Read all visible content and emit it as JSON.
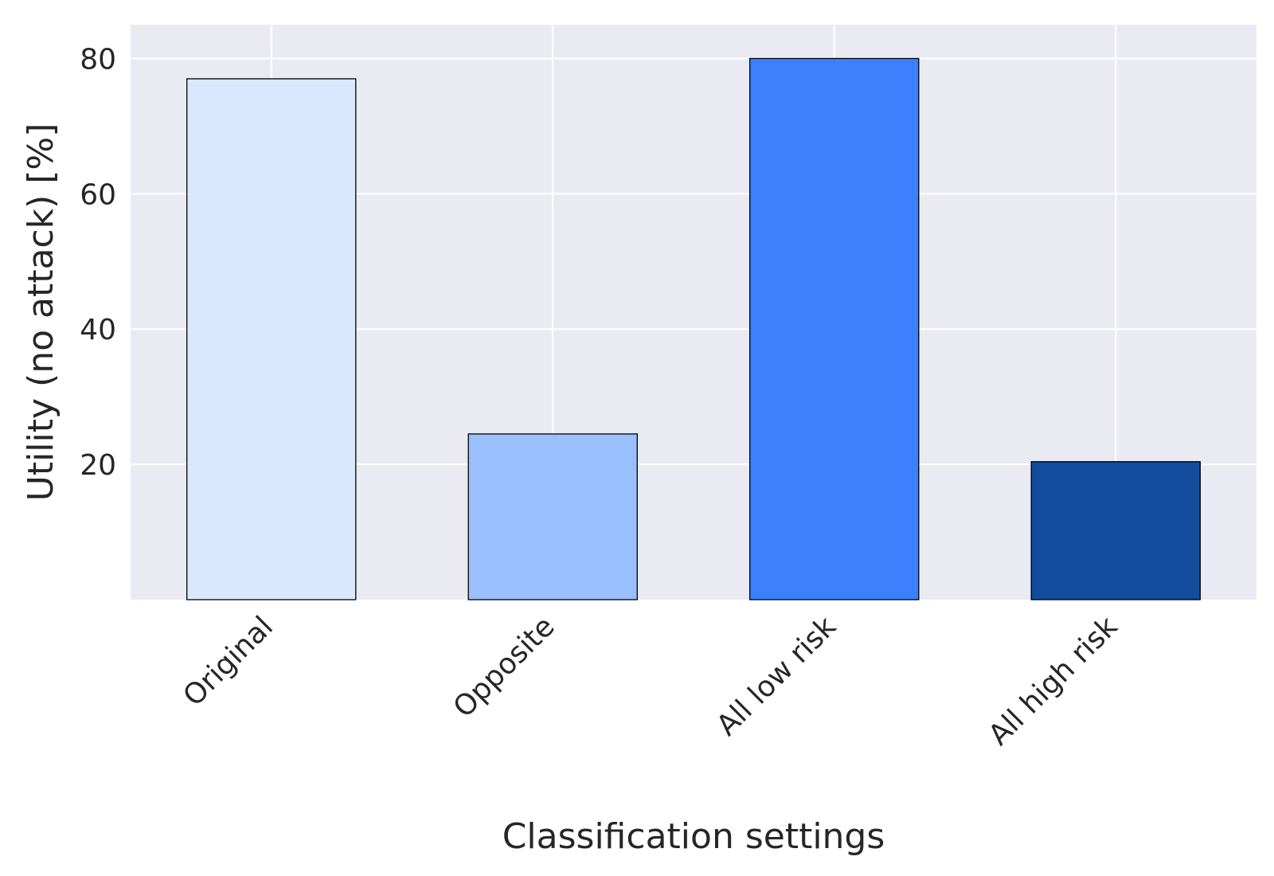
{
  "chart_data": {
    "type": "bar",
    "title": "",
    "xlabel": "Classification settings",
    "ylabel": "Utility (no attack) [%]",
    "categories": [
      "Original",
      "Opposite",
      "All low risk",
      "All high risk"
    ],
    "values": [
      77,
      24.5,
      80,
      20.4
    ],
    "colors": [
      "#d9e8fc",
      "#99bffd",
      "#3d80fe",
      "#134c9d"
    ],
    "ylim": [
      0,
      85
    ],
    "yticks": [
      20,
      40,
      60,
      80
    ],
    "grid": true,
    "background": "#eaeaf2",
    "legend": "none"
  }
}
